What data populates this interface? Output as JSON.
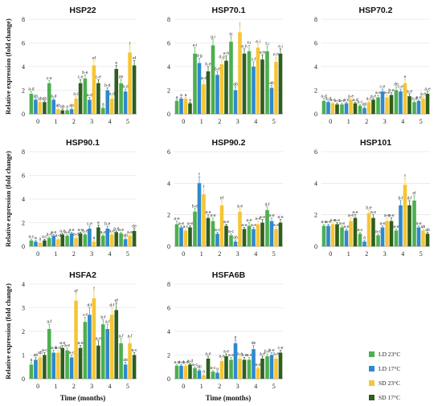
{
  "figure": {
    "shared_ylabel": "Relative expression (fold change)",
    "xlabel": "Time (months)"
  },
  "legend": {
    "items": [
      {
        "label": "LD 23°C",
        "color": "#4caf50"
      },
      {
        "label": "LD 17°C",
        "color": "#2f89cc"
      },
      {
        "label": "SD 23°C",
        "color": "#f7c534"
      },
      {
        "label": "SD 17°C",
        "color": "#2e5e1c"
      }
    ]
  },
  "chart_data": [
    {
      "type": "bar",
      "title": "HSP22",
      "categories": [
        "0",
        "1",
        "2",
        "3",
        "4",
        "5"
      ],
      "ylim": [
        0,
        8
      ],
      "yticks": [
        0,
        2,
        4,
        6,
        8
      ],
      "series": [
        {
          "name": "LD 23°C",
          "values": [
            1.7,
            2.6,
            0.3,
            3.0,
            0.5,
            2.6
          ],
          "errors": [
            0.2,
            0.2,
            0.1,
            0.3,
            0.1,
            0.3
          ],
          "letters": [
            "a-d",
            "c-e",
            "a",
            "b-e",
            "a",
            "de"
          ]
        },
        {
          "name": "LD 17°C",
          "values": [
            1.2,
            1.2,
            0.4,
            1.2,
            2.0,
            1.9
          ],
          "errors": [
            0.1,
            0.1,
            0.1,
            0.2,
            0.2,
            0.2
          ],
          "letters": [
            "ab",
            "a-d",
            "ab",
            "a-d",
            "b-d",
            "b-d"
          ]
        },
        {
          "name": "SD 23°C",
          "values": [
            1.0,
            0.4,
            1.3,
            4.1,
            1.3,
            5.2
          ],
          "errors": [
            0.1,
            0.1,
            0.2,
            0.4,
            0.2,
            0.5
          ],
          "letters": [
            "ab",
            "ab",
            "a-c",
            "ef",
            "a-d",
            "f"
          ]
        },
        {
          "name": "SD 17°C",
          "values": [
            1.0,
            0.3,
            2.6,
            2.6,
            3.8,
            4.1
          ],
          "errors": [
            0.1,
            0.1,
            0.3,
            0.3,
            0.3,
            0.4
          ],
          "letters": [
            "ab",
            "ab",
            "c-e",
            "c-e",
            "e",
            "ef"
          ]
        }
      ]
    },
    {
      "type": "bar",
      "title": "HSP70.1",
      "categories": [
        "0",
        "1",
        "2",
        "3",
        "4",
        "5"
      ],
      "ylim": [
        0,
        8
      ],
      "yticks": [
        0,
        2,
        4,
        6,
        8
      ],
      "series": [
        {
          "name": "LD 23°C",
          "values": [
            1.1,
            5.1,
            5.8,
            6.1,
            5.3,
            5.3
          ],
          "errors": [
            0.1,
            0.5,
            0.5,
            0.4,
            0.5,
            0.4
          ],
          "letters": [
            "a",
            "e-i",
            "g-i",
            "hi",
            "f-i",
            "f-i"
          ]
        },
        {
          "name": "LD 17°C",
          "values": [
            1.3,
            4.3,
            3.3,
            2.0,
            4.0,
            2.2
          ],
          "errors": [
            0.1,
            0.4,
            0.3,
            0.3,
            0.4,
            0.2
          ],
          "letters": [
            "a",
            "d-g",
            "b-e",
            "ab",
            "c-f",
            "ab"
          ]
        },
        {
          "name": "SD 23°C",
          "values": [
            1.3,
            2.5,
            4.2,
            6.9,
            5.6,
            4.4
          ],
          "errors": [
            0.1,
            0.3,
            0.4,
            0.5,
            0.3,
            0.4
          ],
          "letters": [
            "a",
            "a-d",
            "d-g",
            "i",
            "e-i",
            "e-h"
          ]
        },
        {
          "name": "SD 17°C",
          "values": [
            0.9,
            3.6,
            4.5,
            5.1,
            4.6,
            5.1
          ],
          "errors": [
            0.1,
            0.4,
            0.4,
            0.4,
            0.4,
            0.4
          ],
          "letters": [
            "a",
            "b-e",
            "e-h",
            "e-h",
            "e-h",
            "e-i"
          ]
        }
      ]
    },
    {
      "type": "bar",
      "title": "HSP70.2",
      "categories": [
        "0",
        "1",
        "2",
        "3",
        "4",
        "5"
      ],
      "ylim": [
        0,
        8
      ],
      "yticks": [
        0,
        2,
        4,
        6,
        8
      ],
      "series": [
        {
          "name": "LD 23°C",
          "values": [
            1.1,
            0.8,
            0.7,
            1.4,
            2.0,
            1.0
          ],
          "errors": [
            0.2,
            0.1,
            0.1,
            0.2,
            0.3,
            0.1
          ],
          "letters": [
            "a-d",
            "a-c",
            "a-c",
            "a-e",
            "de",
            "a-d"
          ]
        },
        {
          "name": "LD 17°C",
          "values": [
            1.0,
            0.9,
            0.5,
            1.9,
            1.9,
            1.1
          ],
          "errors": [
            0.1,
            0.1,
            0.1,
            0.2,
            0.2,
            0.1
          ],
          "letters": [
            "a-d",
            "a-d",
            "ab",
            "c-e",
            "c-e",
            "a-d"
          ]
        },
        {
          "name": "SD 23°C",
          "values": [
            0.9,
            1.2,
            1.0,
            1.4,
            2.6,
            1.3
          ],
          "errors": [
            0.1,
            0.1,
            0.1,
            0.2,
            0.3,
            0.2
          ],
          "letters": [
            "a-c",
            "a-e",
            "a-c",
            "a-e",
            "e",
            "a-e"
          ]
        },
        {
          "name": "SD 17°C",
          "values": [
            0.8,
            0.9,
            1.2,
            1.6,
            1.5,
            1.7
          ],
          "errors": [
            0.1,
            0.1,
            0.1,
            0.2,
            0.2,
            0.2
          ],
          "letters": [
            "a-d",
            "a-d",
            "a-e",
            "b-e",
            "a-e",
            "a-e"
          ]
        }
      ]
    },
    {
      "type": "bar",
      "title": "HSP90.1",
      "categories": [
        "0",
        "1",
        "2",
        "3",
        "4",
        "5"
      ],
      "ylim": [
        0,
        8
      ],
      "yticks": [
        0,
        2,
        4,
        6,
        8
      ],
      "series": [
        {
          "name": "LD 23°C",
          "values": [
            0.5,
            0.7,
            0.9,
            1.0,
            0.9,
            1.1
          ],
          "errors": [
            0.1,
            0.1,
            0.1,
            0.1,
            0.1,
            0.1
          ],
          "letters": [
            "a-c",
            "a-d",
            "a-e",
            "a-e",
            "a-e",
            "a-e"
          ]
        },
        {
          "name": "LD 17°C",
          "values": [
            0.4,
            0.9,
            1.1,
            1.5,
            1.5,
            0.6
          ],
          "errors": [
            0.1,
            0.1,
            0.1,
            0.2,
            0.2,
            0.1
          ],
          "letters": [
            "a",
            "a-e",
            "a-e",
            "c-e",
            "b-e",
            "ab"
          ]
        },
        {
          "name": "SD 23°C",
          "values": [
            0.3,
            0.6,
            0.7,
            0.4,
            1.0,
            0.9
          ],
          "errors": [
            0.1,
            0.1,
            0.1,
            0.1,
            0.1,
            0.1
          ],
          "letters": [
            "a",
            "a-d",
            "a-d",
            "a",
            "a-e",
            "a-e"
          ]
        },
        {
          "name": "SD 17°C",
          "values": [
            0.5,
            1.0,
            1.1,
            1.6,
            1.2,
            1.3
          ],
          "errors": [
            0.1,
            0.1,
            0.1,
            0.2,
            0.1,
            0.2
          ],
          "letters": [
            "a-c",
            "a-e",
            "a-e",
            "e",
            "a-e",
            "de"
          ]
        }
      ]
    },
    {
      "type": "bar",
      "title": "HSP90.2",
      "categories": [
        "0",
        "1",
        "2",
        "3",
        "4",
        "5"
      ],
      "ylim": [
        0,
        6
      ],
      "yticks": [
        0,
        2,
        4,
        6
      ],
      "series": [
        {
          "name": "LD 23°C",
          "values": [
            1.4,
            2.2,
            1.6,
            0.7,
            1.3,
            2.3
          ],
          "errors": [
            0.2,
            0.2,
            0.2,
            0.1,
            0.2,
            0.2
          ],
          "letters": [
            "a-e",
            "b-e",
            "a-e",
            "a-c",
            "a-e",
            "d-f"
          ]
        },
        {
          "name": "LD 17°C",
          "values": [
            1.2,
            4.0,
            0.8,
            0.3,
            1.1,
            1.6
          ],
          "errors": [
            0.1,
            0.4,
            0.1,
            0.1,
            0.1,
            0.2
          ],
          "letters": [
            "a-e",
            "f",
            "a-c",
            "ab",
            "a-e",
            "a-e"
          ]
        },
        {
          "name": "SD 23°C",
          "values": [
            1.0,
            3.3,
            2.6,
            2.2,
            1.4,
            1.1
          ],
          "errors": [
            0.1,
            0.3,
            0.3,
            0.2,
            0.2,
            0.1
          ],
          "letters": [
            "a-c",
            "f",
            "ef",
            "a-e",
            "a-e",
            "a-e"
          ]
        },
        {
          "name": "SD 17°C",
          "values": [
            1.2,
            1.8,
            1.3,
            1.1,
            1.5,
            1.5
          ],
          "errors": [
            0.1,
            0.2,
            0.1,
            0.1,
            0.2,
            0.2
          ],
          "letters": [
            "a-e",
            "a-e",
            "a-e",
            "a-e",
            "a-e",
            "a-e"
          ]
        }
      ]
    },
    {
      "type": "bar",
      "title": "HSP101",
      "categories": [
        "0",
        "1",
        "2",
        "3",
        "4",
        "5"
      ],
      "ylim": [
        0,
        6
      ],
      "yticks": [
        0,
        2,
        4,
        6
      ],
      "series": [
        {
          "name": "LD 23°C",
          "values": [
            1.3,
            1.2,
            0.8,
            0.7,
            1.0,
            2.9
          ],
          "errors": [
            0.1,
            0.1,
            0.1,
            0.1,
            0.1,
            0.3
          ],
          "letters": [
            "a-e",
            "a-e",
            "a-c",
            "a-c",
            "a-e",
            "ef"
          ]
        },
        {
          "name": "LD 17°C",
          "values": [
            1.3,
            1.0,
            0.3,
            1.2,
            2.6,
            1.2
          ],
          "errors": [
            0.1,
            0.1,
            0.1,
            0.1,
            0.3,
            0.1
          ],
          "letters": [
            "a-e",
            "a-e",
            "a",
            "a-e",
            "b-f",
            "a-e"
          ]
        },
        {
          "name": "SD 23°C",
          "values": [
            1.4,
            1.6,
            2.1,
            1.6,
            3.9,
            1.0
          ],
          "errors": [
            0.1,
            0.2,
            0.2,
            0.2,
            0.4,
            0.1
          ],
          "letters": [
            "a-e",
            "a-e",
            "b-e",
            "a-e",
            "f",
            "ab"
          ]
        },
        {
          "name": "SD 17°C",
          "values": [
            1.4,
            1.8,
            1.8,
            1.6,
            2.6,
            0.8
          ],
          "errors": [
            0.1,
            0.2,
            0.2,
            0.2,
            0.3,
            0.1
          ],
          "letters": [
            "a-e",
            "a-e",
            "a-e",
            "a-e",
            "d-f",
            "ab"
          ]
        }
      ]
    },
    {
      "type": "bar",
      "title": "HSFA2",
      "categories": [
        "0",
        "1",
        "2",
        "3",
        "4",
        "5"
      ],
      "ylim": [
        0,
        4
      ],
      "yticks": [
        0,
        1,
        2,
        3,
        4
      ],
      "series": [
        {
          "name": "LD 23°C",
          "values": [
            0.6,
            2.1,
            1.2,
            2.4,
            2.3,
            1.5
          ],
          "errors": [
            0.1,
            0.2,
            0.1,
            0.2,
            0.2,
            0.2
          ],
          "letters": [
            "a",
            "a-f",
            "a-e",
            "c-f",
            "b-f",
            "a-f"
          ]
        },
        {
          "name": "LD 17°C",
          "values": [
            0.8,
            1.1,
            0.9,
            2.7,
            2.1,
            0.6
          ],
          "errors": [
            0.1,
            0.1,
            0.1,
            0.3,
            0.2,
            0.1
          ],
          "letters": [
            "ab",
            "a-d",
            "a-c",
            "d-f",
            "a-f",
            "ab"
          ]
        },
        {
          "name": "SD 23°C",
          "values": [
            0.9,
            1.1,
            3.3,
            3.4,
            2.7,
            1.5
          ],
          "errors": [
            0.1,
            0.1,
            0.3,
            0.3,
            0.3,
            0.2
          ],
          "letters": [
            "ab",
            "a-d",
            "ef",
            "f",
            "d-f",
            "a-f"
          ]
        },
        {
          "name": "SD 17°C",
          "values": [
            1.0,
            1.3,
            1.3,
            1.4,
            2.9,
            1.0
          ],
          "errors": [
            0.1,
            0.1,
            0.1,
            0.2,
            0.3,
            0.1
          ],
          "letters": [
            "a-c",
            "a-e",
            "a-e",
            "a-e",
            "ef",
            "a-c"
          ]
        }
      ]
    },
    {
      "type": "bar",
      "title": "HSFA6B",
      "categories": [
        "0",
        "1",
        "2",
        "3",
        "4",
        "5"
      ],
      "ylim": [
        0,
        8
      ],
      "yticks": [
        0,
        2,
        4,
        6,
        8
      ],
      "series": [
        {
          "name": "LD 23°C",
          "values": [
            1.1,
            0.9,
            0.6,
            1.6,
            1.6,
            1.9
          ],
          "errors": [
            0.1,
            0.1,
            0.1,
            0.2,
            0.2,
            0.2
          ],
          "letters": [
            "a-d",
            "a-c",
            "a-c",
            "a-e",
            "a-e",
            "b-e"
          ]
        },
        {
          "name": "LD 17°C",
          "values": [
            1.1,
            0.7,
            0.5,
            3.0,
            2.5,
            2.0
          ],
          "errors": [
            0.1,
            0.1,
            0.1,
            0.3,
            0.3,
            0.2
          ],
          "letters": [
            "a-d",
            "ab",
            "a",
            "e",
            "de",
            "b-e"
          ]
        },
        {
          "name": "SD 23°C",
          "values": [
            1.1,
            0.3,
            1.5,
            1.7,
            0.9,
            1.7
          ],
          "errors": [
            0.1,
            0.1,
            0.2,
            0.2,
            0.1,
            0.2
          ],
          "letters": [
            "a-d",
            "a",
            "a-e",
            "a-e",
            "a-e",
            "a-e"
          ]
        },
        {
          "name": "SD 17°C",
          "values": [
            1.2,
            1.7,
            1.9,
            1.6,
            1.7,
            2.2
          ],
          "errors": [
            0.1,
            0.2,
            0.2,
            0.2,
            0.2,
            0.2
          ],
          "letters": [
            "a-d",
            "a-e",
            "a-e",
            "a-e",
            "a-e",
            "c-e"
          ]
        }
      ]
    }
  ]
}
